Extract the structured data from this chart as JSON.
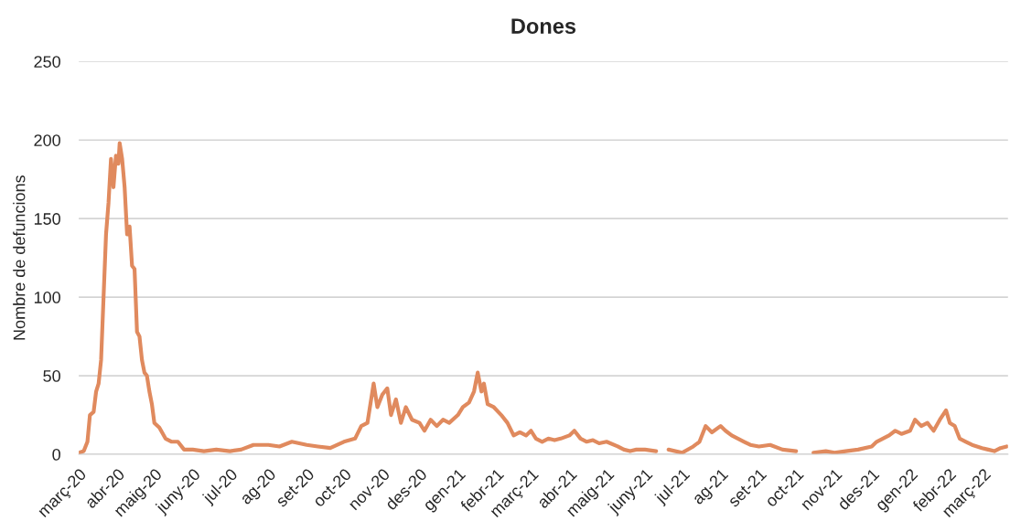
{
  "chart_data": {
    "type": "line",
    "title": "Dones",
    "ylabel": "Nombre de defuncions",
    "x": [
      "2020-03-01",
      "2020-03-05",
      "2020-03-08",
      "2020-03-10",
      "2020-03-13",
      "2020-03-15",
      "2020-03-17",
      "2020-03-19",
      "2020-03-21",
      "2020-03-23",
      "2020-03-25",
      "2020-03-27",
      "2020-03-29",
      "2020-03-31",
      "2020-04-02",
      "2020-04-03",
      "2020-04-05",
      "2020-04-07",
      "2020-04-09",
      "2020-04-11",
      "2020-04-13",
      "2020-04-15",
      "2020-04-17",
      "2020-04-19",
      "2020-04-21",
      "2020-04-23",
      "2020-04-25",
      "2020-04-27",
      "2020-04-29",
      "2020-05-01",
      "2020-05-05",
      "2020-05-10",
      "2020-05-15",
      "2020-05-20",
      "2020-05-25",
      "2020-06-01",
      "2020-06-10",
      "2020-06-20",
      "2020-07-01",
      "2020-07-10",
      "2020-07-20",
      "2020-08-01",
      "2020-08-10",
      "2020-08-20",
      "2020-09-01",
      "2020-09-10",
      "2020-09-20",
      "2020-10-01",
      "2020-10-10",
      "2020-10-15",
      "2020-10-20",
      "2020-10-25",
      "2020-10-28",
      "2020-11-01",
      "2020-11-05",
      "2020-11-08",
      "2020-11-12",
      "2020-11-16",
      "2020-11-20",
      "2020-11-25",
      "2020-12-01",
      "2020-12-05",
      "2020-12-10",
      "2020-12-15",
      "2020-12-20",
      "2020-12-25",
      "2021-01-01",
      "2021-01-05",
      "2021-01-10",
      "2021-01-14",
      "2021-01-17",
      "2021-01-20",
      "2021-01-22",
      "2021-01-25",
      "2021-01-30",
      "2021-02-05",
      "2021-02-10",
      "2021-02-15",
      "2021-02-20",
      "2021-02-25",
      "2021-03-01",
      "2021-03-05",
      "2021-03-10",
      "2021-03-15",
      "2021-03-20",
      "2021-03-25",
      "2021-04-01",
      "2021-04-05",
      "2021-04-10",
      "2021-04-15",
      "2021-04-20",
      "2021-04-25",
      "2021-05-01",
      "2021-05-10",
      "2021-05-15",
      "2021-05-20",
      "2021-05-25",
      "2021-06-01",
      "2021-06-10",
      "2021-06-15",
      "2021-06-20",
      "2021-07-01",
      "2021-07-10",
      "2021-07-15",
      "2021-07-20",
      "2021-07-25",
      "2021-08-01",
      "2021-08-05",
      "2021-08-10",
      "2021-08-15",
      "2021-08-20",
      "2021-08-25",
      "2021-09-01",
      "2021-09-10",
      "2021-09-20",
      "2021-10-01",
      "2021-10-10",
      "2021-10-15",
      "2021-10-25",
      "2021-11-01",
      "2021-11-10",
      "2021-11-20",
      "2021-12-01",
      "2021-12-05",
      "2021-12-10",
      "2021-12-15",
      "2021-12-20",
      "2021-12-25",
      "2022-01-01",
      "2022-01-05",
      "2022-01-10",
      "2022-01-15",
      "2022-01-20",
      "2022-01-25",
      "2022-01-30",
      "2022-02-02",
      "2022-02-06",
      "2022-02-10",
      "2022-02-15",
      "2022-02-20",
      "2022-02-28",
      "2022-03-05",
      "2022-03-10",
      "2022-03-15",
      "2022-03-20"
    ],
    "series": [
      {
        "color": "#e08a5e",
        "values": [
          1,
          2,
          8,
          25,
          27,
          40,
          45,
          60,
          100,
          140,
          160,
          188,
          170,
          190,
          185,
          198,
          188,
          170,
          140,
          145,
          120,
          118,
          78,
          75,
          60,
          52,
          50,
          40,
          32,
          20,
          17,
          10,
          8,
          8,
          3,
          3,
          2,
          3,
          2,
          3,
          6,
          6,
          5,
          8,
          6,
          5,
          4,
          8,
          10,
          18,
          20,
          45,
          30,
          38,
          42,
          25,
          35,
          20,
          30,
          22,
          20,
          15,
          22,
          18,
          22,
          20,
          25,
          30,
          33,
          40,
          52,
          40,
          45,
          32,
          30,
          25,
          20,
          12,
          14,
          12,
          15,
          10,
          8,
          10,
          9,
          10,
          12,
          15,
          10,
          8,
          9,
          7,
          8,
          5,
          3,
          2,
          3,
          3,
          2,
          null,
          3,
          1,
          5,
          8,
          18,
          14,
          18,
          15,
          12,
          10,
          8,
          6,
          5,
          6,
          3,
          2,
          null,
          1,
          2,
          1,
          2,
          3,
          5,
          8,
          10,
          12,
          15,
          13,
          15,
          22,
          18,
          20,
          15,
          22,
          28,
          20,
          18,
          10,
          8,
          6,
          4,
          3,
          2,
          4,
          5
        ]
      }
    ],
    "xlim": [
      "2020-03-01",
      "2022-03-21"
    ],
    "xticks": [
      {
        "value": "2020-03-01",
        "label": "març-20"
      },
      {
        "value": "2020-04-01",
        "label": "abr-20"
      },
      {
        "value": "2020-05-01",
        "label": "maig-20"
      },
      {
        "value": "2020-06-01",
        "label": "juny-20"
      },
      {
        "value": "2020-07-01",
        "label": "jul-20"
      },
      {
        "value": "2020-08-01",
        "label": "ag-20"
      },
      {
        "value": "2020-09-01",
        "label": "set-20"
      },
      {
        "value": "2020-10-01",
        "label": "oct-20"
      },
      {
        "value": "2020-11-01",
        "label": "nov-20"
      },
      {
        "value": "2020-12-01",
        "label": "des-20"
      },
      {
        "value": "2021-01-01",
        "label": "gen-21"
      },
      {
        "value": "2021-02-01",
        "label": "febr-21"
      },
      {
        "value": "2021-03-01",
        "label": "març-21"
      },
      {
        "value": "2021-04-01",
        "label": "abr-21"
      },
      {
        "value": "2021-05-01",
        "label": "maig-21"
      },
      {
        "value": "2021-06-01",
        "label": "juny-21"
      },
      {
        "value": "2021-07-01",
        "label": "jul-21"
      },
      {
        "value": "2021-08-01",
        "label": "ag-21"
      },
      {
        "value": "2021-09-01",
        "label": "set-21"
      },
      {
        "value": "2021-10-01",
        "label": "oct-21"
      },
      {
        "value": "2021-11-01",
        "label": "nov-21"
      },
      {
        "value": "2021-12-01",
        "label": "des-21"
      },
      {
        "value": "2022-01-01",
        "label": "gen-22"
      },
      {
        "value": "2022-02-01",
        "label": "febr-22"
      },
      {
        "value": "2022-03-01",
        "label": "març-22"
      }
    ],
    "ylim": [
      0,
      250
    ],
    "yticks": [
      0,
      50,
      100,
      150,
      200,
      250
    ],
    "grid": "y",
    "legend": false,
    "line_style": "solid",
    "marker": "none"
  }
}
